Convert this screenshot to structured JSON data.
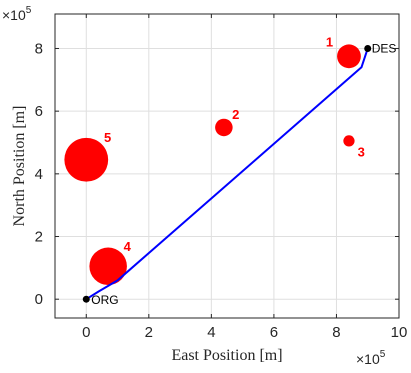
{
  "chart_data": {
    "type": "scatter",
    "xlabel": "East Position [m]",
    "ylabel": "North Position [m]",
    "x_exponent": "×10",
    "x_exponent_power": "5",
    "y_exponent": "×10",
    "y_exponent_power": "5",
    "xlim": [
      -100000,
      1000000
    ],
    "ylim": [
      -60000,
      910000
    ],
    "xticks": [
      0,
      200000,
      400000,
      600000,
      800000,
      1000000
    ],
    "xtick_labels": [
      "0",
      "2",
      "4",
      "6",
      "8",
      "10"
    ],
    "yticks": [
      0,
      200000,
      400000,
      600000,
      800000
    ],
    "ytick_labels": [
      "0",
      "2",
      "4",
      "6",
      "8"
    ],
    "grid": true,
    "obstacles": [
      {
        "label": "1",
        "x": 840000,
        "y": 775000,
        "radius": 38000
      },
      {
        "label": "2",
        "x": 440000,
        "y": 548000,
        "radius": 28000
      },
      {
        "label": "3",
        "x": 840000,
        "y": 505000,
        "radius": 18000
      },
      {
        "label": "4",
        "x": 70000,
        "y": 105000,
        "radius": 60000
      },
      {
        "label": "5",
        "x": 0,
        "y": 445000,
        "radius": 70000
      }
    ],
    "points": [
      {
        "label": "ORG",
        "x": 0,
        "y": 0
      },
      {
        "label": "DES",
        "x": 900000,
        "y": 800000
      }
    ],
    "path": {
      "x": [
        0,
        40000,
        100000,
        880000,
        900000
      ],
      "y": [
        0,
        25000,
        60000,
        740000,
        800000
      ]
    },
    "colors": {
      "obstacle": "#ff0000",
      "obstacle_label": "#ff0000",
      "path": "#0000ff",
      "point": "#000000",
      "grid": "#dfdfdf",
      "axis": "#262626"
    }
  }
}
